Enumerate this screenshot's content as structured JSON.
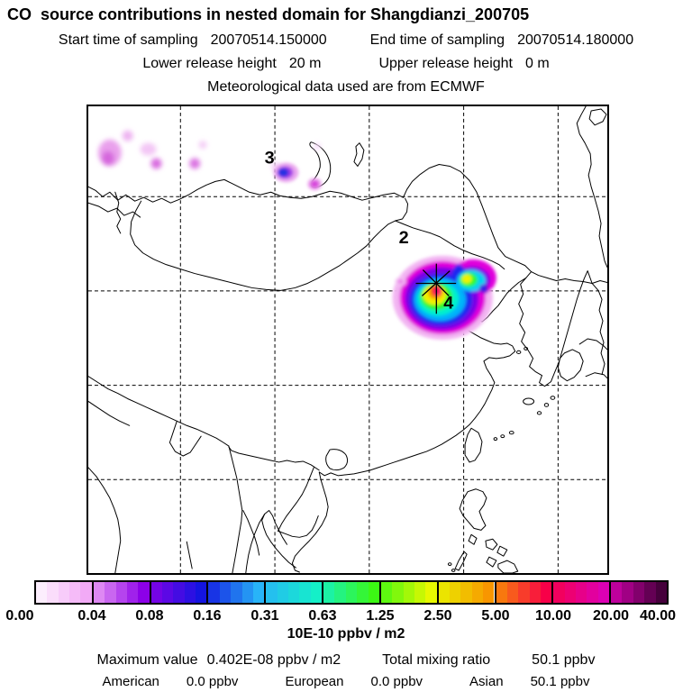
{
  "header": {
    "title": "CO  source contributions in nested domain for Shangdianzi_200705",
    "sampling": {
      "start_label": "Start time of sampling",
      "start_value": "20070514.150000",
      "end_label": "End time of sampling",
      "end_value": "20070514.180000"
    },
    "release": {
      "lower_label": "Lower release height",
      "lower_value": "20 m",
      "upper_label": "Upper release height",
      "upper_value": "0 m"
    },
    "met_source": "Meteorological data used are from ECMWF"
  },
  "map": {
    "regions": [
      {
        "label": "3"
      },
      {
        "label": "2"
      },
      {
        "label": "4"
      }
    ],
    "marker": {
      "description": "receptor site asterisk at Shangdianzi"
    }
  },
  "colorbar": {
    "ticks": [
      "0.00",
      "0.04",
      "0.08",
      "0.16",
      "0.31",
      "0.63",
      "1.25",
      "2.50",
      "5.00",
      "10.00",
      "20.00",
      "40.00"
    ],
    "boundary_colors": [
      "#ffffff",
      "#f2aaf6",
      "#8c00e8",
      "#1414e0",
      "#28b4f8",
      "#14f0c8",
      "#3cf814",
      "#e8f800",
      "#f89600",
      "#f80048",
      "#dc00b4",
      "#46003c"
    ],
    "cells_per_segment": 5,
    "units_label": "10E-10 ppbv / m2"
  },
  "stats": {
    "max_label": "Maximum value",
    "max_value": "0.402E-08 ppbv / m2",
    "mixing_label": "Total mixing ratio",
    "mixing_value": "50.1 ppbv",
    "contributions": [
      {
        "name": "American",
        "value": "0.0 ppbv"
      },
      {
        "name": "European",
        "value": "0.0 ppbv"
      },
      {
        "name": "Asian",
        "value": "50.1 ppbv"
      }
    ]
  },
  "chart_data": {
    "type": "heatmap",
    "title": "CO source contributions in nested domain for Shangdianzi_200705",
    "station": "Shangdianzi",
    "sampling_start": "20070514.150000",
    "sampling_end": "20070514.180000",
    "lower_release_height_m": 20,
    "upper_release_height_m": 0,
    "meteorology": "ECMWF",
    "colorscale_ticks": [
      0.0,
      0.04,
      0.08,
      0.16,
      0.31,
      0.63,
      1.25,
      2.5,
      5.0,
      10.0,
      20.0,
      40.0
    ],
    "colorscale_units": "10E-10 ppbv / m2",
    "maximum_value": "0.402E-08 ppbv / m2",
    "total_mixing_ratio_ppbv": 50.1,
    "region_contributions": [
      {
        "region": "American",
        "ppbv": 0.0
      },
      {
        "region": "European",
        "ppbv": 0.0
      },
      {
        "region": "Asian",
        "ppbv": 50.1
      }
    ],
    "map_region_markers": [
      "3 near Lake Baikal",
      "2 over eastern Mongolia",
      "4 at receptor near Bohai/Beijing plume"
    ],
    "legend_position": "bottom",
    "grid": "dashed lat/lon graticule"
  }
}
